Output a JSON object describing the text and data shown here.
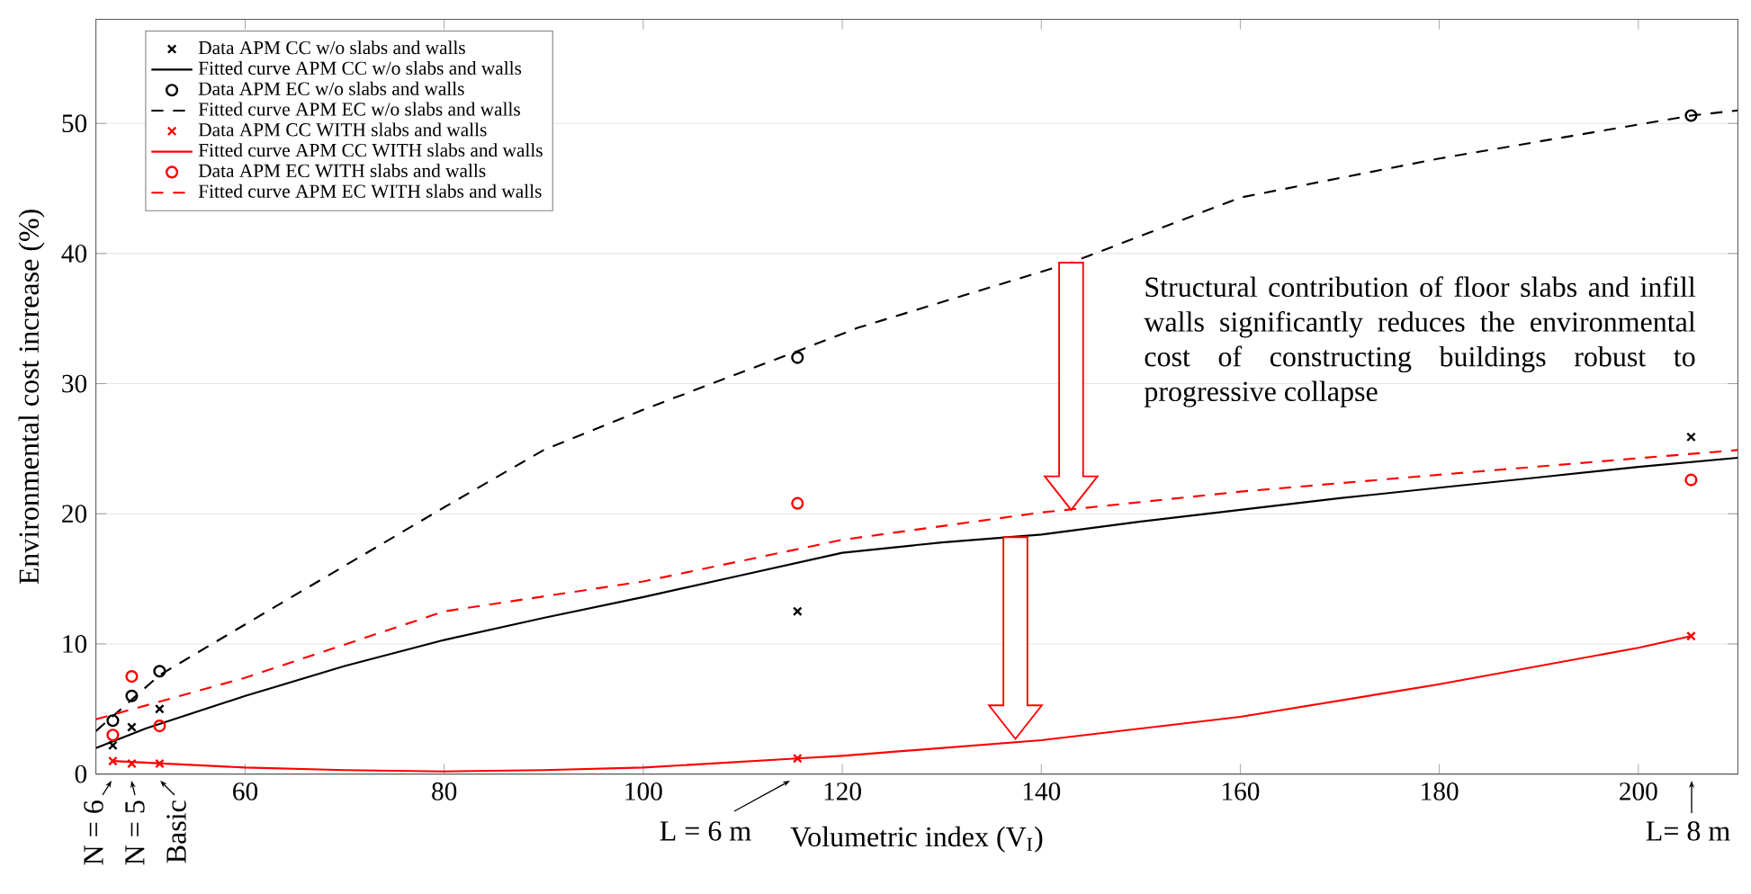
{
  "chart_data": {
    "type": "line",
    "xlabel": "Volumetric index (V$_{I}$)",
    "ylabel": "Environmental cost increase (%)",
    "xlim": [
      45,
      210
    ],
    "ylim": [
      0,
      58
    ],
    "xticks": [
      60,
      80,
      100,
      120,
      140,
      160,
      180,
      200
    ],
    "yticks": [
      0,
      10,
      20,
      30,
      40,
      50
    ],
    "grid": "y",
    "legend": "top left",
    "series": [
      {
        "name": "Data APM CC w/o slabs and walls",
        "type": "scatter",
        "marker": "cross",
        "color": "#000000",
        "x": [
          46.7,
          48.6,
          51.4,
          115.5,
          205.3
        ],
        "values": [
          2.2,
          3.6,
          5.0,
          12.5,
          25.9
        ]
      },
      {
        "name": "Fitted curve APM CC w/o slabs and walls",
        "type": "line",
        "marker": "none",
        "line_style": "solid",
        "color": "#000000",
        "x": [
          45,
          50,
          60,
          70,
          80,
          90,
          100,
          110,
          120,
          130,
          140,
          150,
          160,
          170,
          180,
          190,
          200,
          210
        ],
        "values": [
          2.0,
          3.5,
          6.0,
          8.3,
          10.3,
          12.0,
          13.6,
          15.3,
          17.0,
          17.8,
          18.4,
          19.4,
          20.3,
          21.2,
          22.0,
          22.8,
          23.6,
          24.3
        ]
      },
      {
        "name": "Data APM EC w/o slabs and walls",
        "type": "scatter",
        "marker": "circle",
        "color": "#000000",
        "x": [
          46.7,
          48.6,
          51.4,
          115.5,
          205.3
        ],
        "values": [
          4.1,
          6.0,
          7.9,
          32.0,
          50.6
        ]
      },
      {
        "name": "Fitted curve APM EC w/o slabs and walls",
        "type": "line",
        "marker": "none",
        "line_style": "dashed",
        "color": "#000000",
        "x": [
          45,
          51.4,
          60,
          70,
          80,
          90,
          100,
          115.5,
          121.6,
          143,
          160,
          180,
          205.3,
          210
        ],
        "values": [
          3.3,
          7.6,
          11.5,
          16.0,
          20.5,
          24.9,
          28.0,
          32.5,
          34.3,
          39.3,
          44.3,
          47.3,
          50.6,
          51.0
        ]
      },
      {
        "name": "Data APM CC WITH slabs and walls",
        "type": "scatter",
        "marker": "cross",
        "color": "#ff0000",
        "x": [
          46.7,
          48.6,
          51.4,
          115.5,
          205.3
        ],
        "values": [
          1.0,
          0.8,
          0.8,
          1.2,
          10.6
        ]
      },
      {
        "name": "Fitted curve APM CC WITH slabs and walls",
        "type": "line",
        "marker": "none",
        "line_style": "solid",
        "color": "#ff0000",
        "x": [
          46.7,
          60,
          70,
          80,
          90,
          100,
          115.5,
          120,
          140,
          160,
          180,
          200,
          205.3
        ],
        "values": [
          1.0,
          0.5,
          0.3,
          0.2,
          0.3,
          0.5,
          1.2,
          1.4,
          2.6,
          4.4,
          6.9,
          9.7,
          10.6
        ]
      },
      {
        "name": "Data APM EC WITH slabs and walls",
        "type": "scatter",
        "marker": "circle",
        "color": "#ff0000",
        "x": [
          46.7,
          48.6,
          51.4,
          115.5,
          205.3
        ],
        "values": [
          3.0,
          7.5,
          3.7,
          20.8,
          22.6
        ]
      },
      {
        "name": "Fitted curve APM EC WITH slabs and walls",
        "type": "line",
        "marker": "none",
        "line_style": "dashed",
        "color": "#ff0000",
        "x": [
          45,
          60,
          80,
          100,
          120,
          140,
          160,
          180,
          210
        ],
        "values": [
          4.2,
          7.4,
          12.5,
          14.8,
          18.0,
          20.1,
          21.7,
          23.0,
          24.9
        ]
      }
    ],
    "annotations": [
      "N = 6",
      "N = 5",
      "Basic",
      "L = 6 m",
      "L= 8 m",
      "Structural contribution of floor slabs and infill walls significantly reduces the environmental cost of constructing buildings robust to progressive collapse"
    ]
  }
}
